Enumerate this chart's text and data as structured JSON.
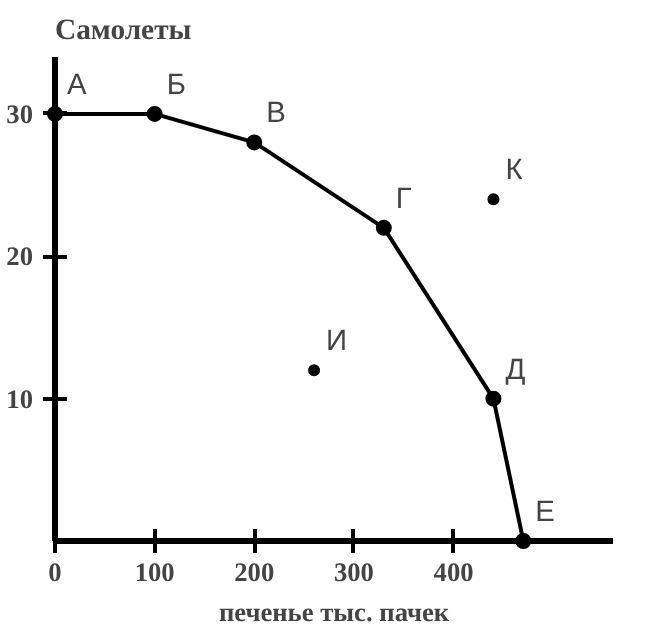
{
  "chart_data": {
    "type": "line",
    "ylabel": "Самолеты",
    "xlabel": "печенье тыс. пачек",
    "series": [
      {
        "color": "#000000",
        "marker": "circle",
        "x": [
          0,
          100,
          200,
          330,
          440,
          470
        ],
        "values": [
          30,
          30,
          28,
          22,
          10,
          0
        ]
      },
      {
        "type": "scatter",
        "color": "#000000",
        "marker": "circle",
        "x": [
          260,
          440
        ],
        "values": [
          12,
          24
        ]
      }
    ],
    "annotations": [
      {
        "text": "А",
        "x": 0,
        "y": 30
      },
      {
        "text": "Б",
        "x": 100,
        "y": 30
      },
      {
        "text": "В",
        "x": 200,
        "y": 28
      },
      {
        "text": "Г",
        "x": 330,
        "y": 22
      },
      {
        "text": "Д",
        "x": 440,
        "y": 10
      },
      {
        "text": "Е",
        "x": 470,
        "y": 0
      },
      {
        "text": "И",
        "x": 260,
        "y": 12
      },
      {
        "text": "К",
        "x": 440,
        "y": 24
      }
    ],
    "xlim": [
      0,
      560
    ],
    "ylim": [
      0,
      34
    ],
    "xticks": [
      0,
      100,
      200,
      300,
      400
    ],
    "yticks": [
      10,
      20,
      30
    ],
    "grid": false
  }
}
